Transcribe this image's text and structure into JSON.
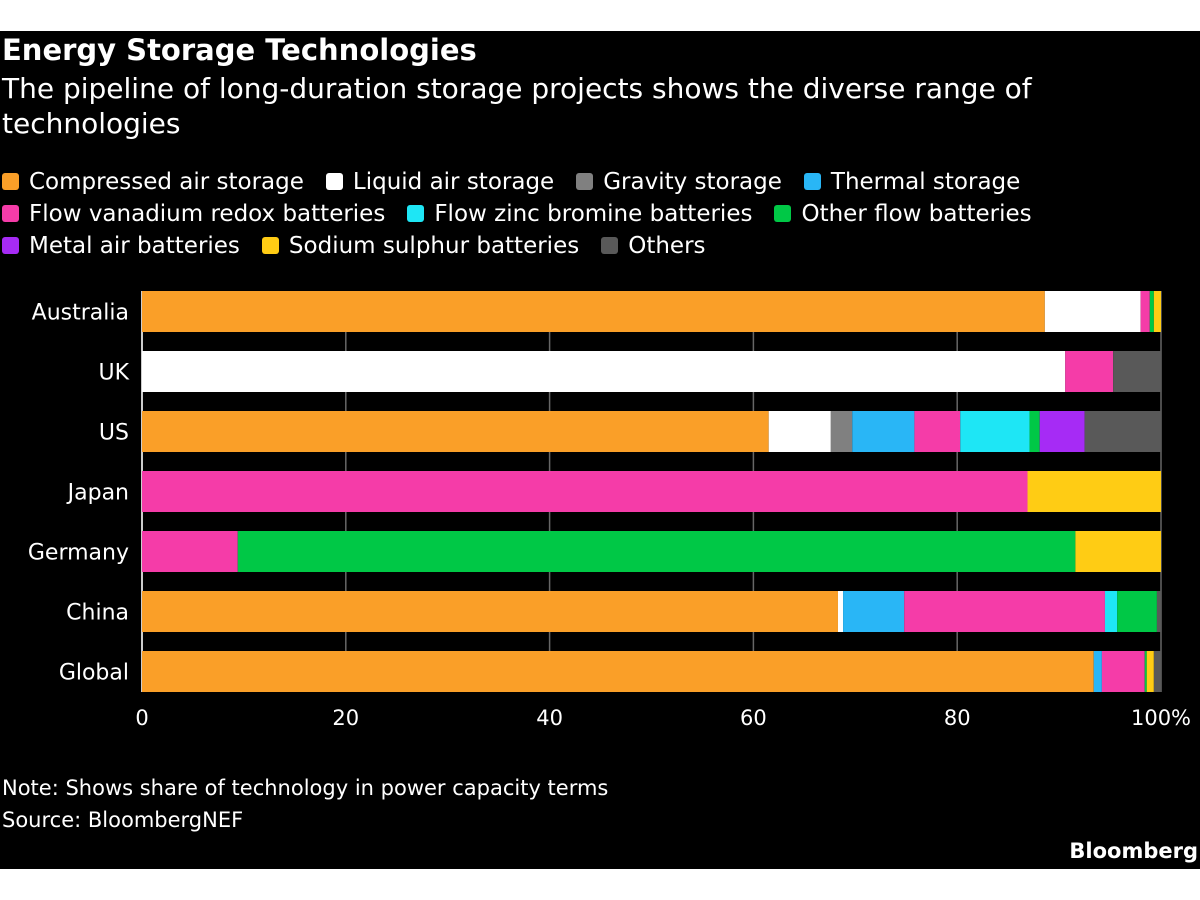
{
  "title": "Energy Storage Technologies",
  "subtitle": "The pipeline of long-duration storage projects shows the diverse range of technologies",
  "note": "Note: Shows share of technology in power capacity terms",
  "source": "Source: BloombergNEF",
  "brand": "Bloomberg",
  "chart_data": {
    "type": "bar",
    "orientation": "horizontal",
    "stacked": true,
    "categories": [
      "Australia",
      "UK",
      "US",
      "Japan",
      "Germany",
      "China",
      "Global"
    ],
    "xlim": [
      0,
      100
    ],
    "xticks": [
      "0",
      "20",
      "40",
      "60",
      "80",
      "100%"
    ],
    "grid": true,
    "legend_position": "top",
    "series": [
      {
        "name": "Compressed air storage",
        "color": "#fa9f28",
        "values": [
          88.6,
          0,
          61.5,
          0,
          0,
          68.3,
          93.4
        ]
      },
      {
        "name": "Liquid air storage",
        "color": "#ffffff",
        "values": [
          9.4,
          90.6,
          6.1,
          0,
          0,
          0.5,
          0
        ]
      },
      {
        "name": "Gravity storage",
        "color": "#808080",
        "values": [
          0,
          0,
          2.1,
          0,
          0,
          0,
          0
        ]
      },
      {
        "name": "Thermal storage",
        "color": "#29b6f6",
        "values": [
          0,
          0,
          6.1,
          0,
          0,
          6.0,
          0.8
        ]
      },
      {
        "name": "Flow vanadium redox batteries",
        "color": "#f53ca8",
        "values": [
          0.9,
          4.7,
          4.5,
          86.9,
          9.4,
          19.7,
          4.2
        ]
      },
      {
        "name": "Flow zinc bromine batteries",
        "color": "#1ee6f5",
        "values": [
          0,
          0,
          6.8,
          0,
          0,
          1.2,
          0
        ]
      },
      {
        "name": "Other flow batteries",
        "color": "#00c846",
        "values": [
          0.4,
          0,
          1.0,
          0,
          82.2,
          3.9,
          0.2
        ]
      },
      {
        "name": "Metal air batteries",
        "color": "#a62bf5",
        "values": [
          0,
          0,
          4.4,
          0,
          0,
          0,
          0
        ]
      },
      {
        "name": "Sodium sulphur batteries",
        "color": "#ffcc14",
        "values": [
          0.7,
          0,
          0,
          13.1,
          8.4,
          0,
          0.7
        ]
      },
      {
        "name": "Others",
        "color": "#595959",
        "values": [
          0,
          4.7,
          7.5,
          0,
          0,
          0.4,
          0.7
        ]
      }
    ]
  }
}
